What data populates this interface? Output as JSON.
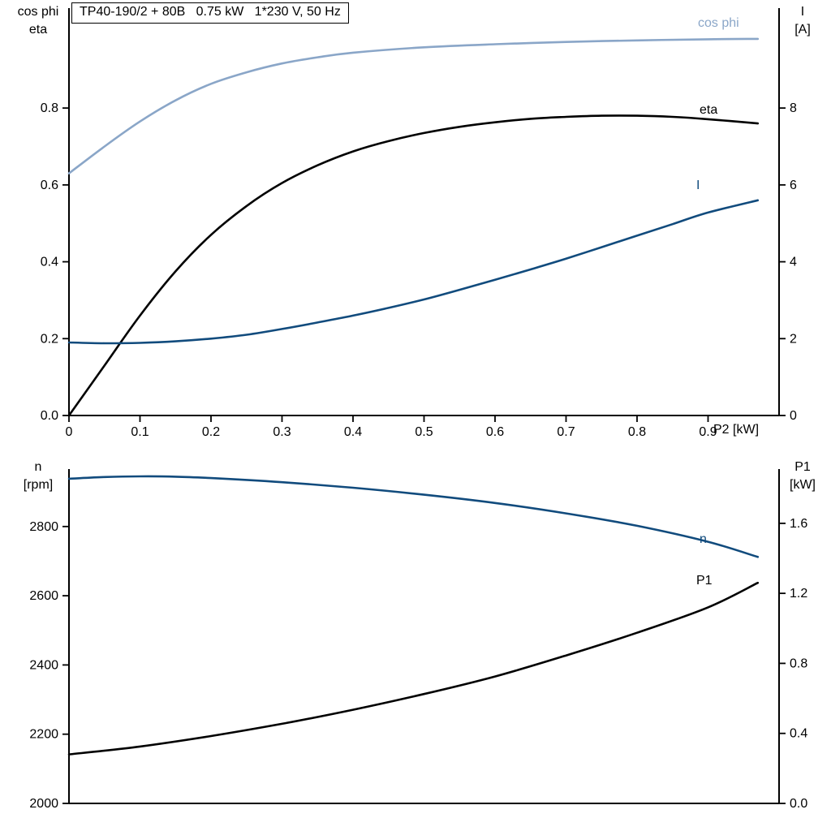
{
  "title_box": "TP40-190/2 + 80B   0.75 kW   1*230 V, 50 Hz",
  "colors": {
    "black": "#000000",
    "dark_blue": "#114b7d",
    "light_blue": "#8aa6c8"
  },
  "chart_data": [
    {
      "type": "line",
      "name": "motor-electrical-curves",
      "grid": false,
      "x_axis": {
        "label": "P2 [kW]",
        "lim": [
          0,
          1.0
        ],
        "ticks": [
          {
            "v": 0,
            "label": "0"
          },
          {
            "v": 0.1,
            "label": "0.1"
          },
          {
            "v": 0.2,
            "label": "0.2"
          },
          {
            "v": 0.3,
            "label": "0.3"
          },
          {
            "v": 0.4,
            "label": "0.4"
          },
          {
            "v": 0.5,
            "label": "0.5"
          },
          {
            "v": 0.6,
            "label": "0.6"
          },
          {
            "v": 0.7,
            "label": "0.7"
          },
          {
            "v": 0.8,
            "label": "0.8"
          },
          {
            "v": 0.9,
            "label": "0.9"
          }
        ]
      },
      "left_axis": {
        "lines": [
          "cos phi",
          "eta"
        ],
        "lim": [
          0,
          1.06
        ],
        "ticks": [
          {
            "v": 0.0,
            "label": "0.0"
          },
          {
            "v": 0.2,
            "label": "0.2"
          },
          {
            "v": 0.4,
            "label": "0.4"
          },
          {
            "v": 0.6,
            "label": "0.6"
          },
          {
            "v": 0.8,
            "label": "0.8"
          }
        ]
      },
      "right_axis": {
        "lines": [
          "I",
          "[A]"
        ],
        "lim": [
          0,
          10.6
        ],
        "ticks": [
          {
            "v": 0,
            "label": "0"
          },
          {
            "v": 2,
            "label": "2"
          },
          {
            "v": 4,
            "label": "4"
          },
          {
            "v": 6,
            "label": "6"
          },
          {
            "v": 8,
            "label": "8"
          }
        ]
      },
      "series": [
        {
          "name": "cos-phi",
          "label": "cos phi",
          "axis": "left",
          "color": "light_blue",
          "x": [
            0,
            0.05,
            0.1,
            0.15,
            0.2,
            0.25,
            0.3,
            0.35,
            0.4,
            0.5,
            0.6,
            0.7,
            0.8,
            0.9,
            0.97
          ],
          "y": [
            0.63,
            0.7,
            0.765,
            0.82,
            0.863,
            0.893,
            0.916,
            0.932,
            0.944,
            0.958,
            0.966,
            0.972,
            0.976,
            0.979,
            0.98
          ]
        },
        {
          "name": "eta",
          "label": "eta",
          "axis": "left",
          "color": "black",
          "x": [
            0,
            0.05,
            0.1,
            0.15,
            0.2,
            0.25,
            0.3,
            0.35,
            0.4,
            0.45,
            0.5,
            0.55,
            0.6,
            0.65,
            0.7,
            0.75,
            0.8,
            0.85,
            0.9,
            0.97
          ],
          "y": [
            0.0,
            0.13,
            0.26,
            0.375,
            0.47,
            0.545,
            0.605,
            0.651,
            0.687,
            0.714,
            0.735,
            0.751,
            0.763,
            0.772,
            0.777,
            0.78,
            0.78,
            0.777,
            0.771,
            0.76
          ]
        },
        {
          "name": "current",
          "label": "I",
          "axis": "right",
          "color": "dark_blue",
          "x": [
            0,
            0.05,
            0.1,
            0.15,
            0.2,
            0.25,
            0.3,
            0.35,
            0.4,
            0.45,
            0.5,
            0.55,
            0.6,
            0.65,
            0.7,
            0.75,
            0.8,
            0.85,
            0.9,
            0.97
          ],
          "y": [
            1.9,
            1.88,
            1.89,
            1.93,
            2.0,
            2.1,
            2.25,
            2.42,
            2.6,
            2.8,
            3.02,
            3.27,
            3.53,
            3.8,
            4.08,
            4.38,
            4.68,
            4.98,
            5.28,
            5.6
          ]
        }
      ]
    },
    {
      "type": "line",
      "name": "speed-power-curves",
      "grid": false,
      "x_axis": {
        "label": "",
        "lim": [
          0,
          1.0
        ],
        "ticks": []
      },
      "left_axis": {
        "lines": [
          "n",
          "[rpm]"
        ],
        "lim": [
          2000,
          2966
        ],
        "ticks": [
          {
            "v": 2000,
            "label": "2000"
          },
          {
            "v": 2200,
            "label": "2200"
          },
          {
            "v": 2400,
            "label": "2400"
          },
          {
            "v": 2600,
            "label": "2600"
          },
          {
            "v": 2800,
            "label": "2800"
          }
        ]
      },
      "right_axis": {
        "lines": [
          "P1",
          "[kW]"
        ],
        "lim": [
          0,
          1.91
        ],
        "ticks": [
          {
            "v": 0.0,
            "label": "0.0"
          },
          {
            "v": 0.4,
            "label": "0.4"
          },
          {
            "v": 0.8,
            "label": "0.8"
          },
          {
            "v": 1.2,
            "label": "1.2"
          },
          {
            "v": 1.6,
            "label": "1.6"
          }
        ]
      },
      "series": [
        {
          "name": "speed",
          "label": "n",
          "axis": "left",
          "color": "dark_blue",
          "x": [
            0,
            0.05,
            0.1,
            0.15,
            0.2,
            0.3,
            0.4,
            0.5,
            0.6,
            0.7,
            0.8,
            0.9,
            0.97
          ],
          "y": [
            2938,
            2943,
            2945,
            2944,
            2940,
            2928,
            2912,
            2892,
            2868,
            2838,
            2802,
            2756,
            2712
          ]
        },
        {
          "name": "input-power",
          "label": "P1",
          "axis": "right",
          "color": "black",
          "x": [
            0,
            0.1,
            0.2,
            0.3,
            0.4,
            0.5,
            0.6,
            0.7,
            0.8,
            0.9,
            0.97
          ],
          "y": [
            0.28,
            0.325,
            0.385,
            0.455,
            0.535,
            0.625,
            0.725,
            0.845,
            0.975,
            1.12,
            1.26
          ]
        }
      ]
    }
  ]
}
